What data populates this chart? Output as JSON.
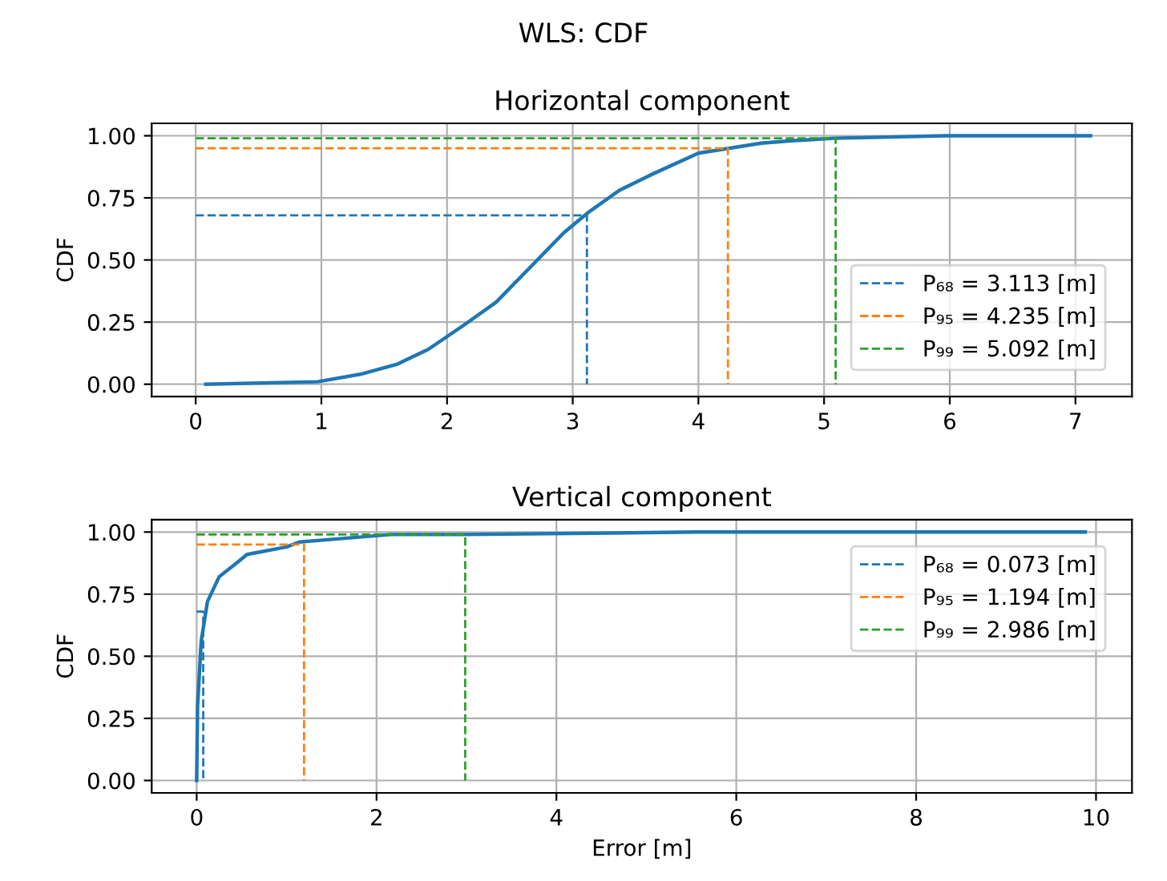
{
  "chart_data": [
    {
      "type": "line",
      "title": "Horizontal component",
      "ylabel": "CDF",
      "annotations": [
        "WLS: CDF"
      ],
      "xlim": [
        -0.35,
        7.45
      ],
      "xticks": [
        0,
        1,
        2,
        3,
        4,
        5,
        6,
        7
      ],
      "ylim": [
        -0.05,
        1.05
      ],
      "yticks": [
        {
          "value": 0,
          "label": "0.00"
        },
        {
          "value": 0.25,
          "label": "0.25"
        },
        {
          "value": 0.5,
          "label": "0.50"
        },
        {
          "value": 0.75,
          "label": "0.75"
        },
        {
          "value": 1,
          "label": "1.00"
        }
      ],
      "grid": true,
      "legend": "lower right",
      "series": [
        {
          "color": "#1f77b4",
          "line_style": "solid",
          "x": [
            0.08,
            0.97,
            1.31,
            1.6,
            1.85,
            2.14,
            2.39,
            2.68,
            2.93,
            3.12,
            3.37,
            3.61,
            4.0,
            4.25,
            4.5,
            4.74,
            5.08,
            5.97,
            7.12
          ],
          "values": [
            0.0,
            0.01,
            0.04,
            0.08,
            0.14,
            0.24,
            0.33,
            0.48,
            0.61,
            0.69,
            0.78,
            0.84,
            0.93,
            0.95,
            0.97,
            0.98,
            0.99,
            1.0,
            1.0
          ]
        },
        {
          "name": "P₆₈ = 3.113 [m]",
          "color": "#1f77b4",
          "line_style": "dashed",
          "x": [
            0,
            3.113,
            3.113
          ],
          "values": [
            0.68,
            0.68,
            0
          ]
        },
        {
          "name": "P₉₅ = 4.235 [m]",
          "color": "#ff7f0e",
          "line_style": "dashed",
          "x": [
            0,
            4.235,
            4.235
          ],
          "values": [
            0.95,
            0.95,
            0
          ]
        },
        {
          "name": "P₉₉ = 5.092 [m]",
          "color": "#2ca02c",
          "line_style": "dashed",
          "x": [
            0,
            5.092,
            5.092
          ],
          "values": [
            0.99,
            0.99,
            0
          ]
        }
      ]
    },
    {
      "type": "line",
      "title": "Vertical component",
      "ylabel": "CDF",
      "xlabel": "Error [m]",
      "xlim": [
        -0.5,
        10.4
      ],
      "xticks": [
        0,
        2,
        4,
        6,
        8,
        10
      ],
      "ylim": [
        -0.05,
        1.05
      ],
      "yticks": [
        {
          "value": 0,
          "label": "0.00"
        },
        {
          "value": 0.25,
          "label": "0.25"
        },
        {
          "value": 0.5,
          "label": "0.50"
        },
        {
          "value": 0.75,
          "label": "0.75"
        },
        {
          "value": 1,
          "label": "1.00"
        }
      ],
      "grid": true,
      "legend": "upper right",
      "series": [
        {
          "color": "#1f77b4",
          "line_style": "solid",
          "x": [
            0.0,
            0.01,
            0.05,
            0.12,
            0.25,
            0.46,
            0.56,
            1.0,
            1.14,
            1.48,
            2.16,
            2.97,
            5.56,
            9.88
          ],
          "values": [
            0.0,
            0.3,
            0.56,
            0.72,
            0.82,
            0.88,
            0.91,
            0.94,
            0.96,
            0.97,
            0.99,
            0.99,
            1.0,
            1.0
          ]
        },
        {
          "name": "P₆₈ = 0.073 [m]",
          "color": "#1f77b4",
          "line_style": "dashed",
          "x": [
            0,
            0.073,
            0.073
          ],
          "values": [
            0.68,
            0.68,
            0
          ]
        },
        {
          "name": "P₉₅ = 1.194 [m]",
          "color": "#ff7f0e",
          "line_style": "dashed",
          "x": [
            0,
            1.194,
            1.194
          ],
          "values": [
            0.95,
            0.95,
            0
          ]
        },
        {
          "name": "P₉₉ = 2.986 [m]",
          "color": "#2ca02c",
          "line_style": "dashed",
          "x": [
            0,
            2.986,
            2.986
          ],
          "values": [
            0.99,
            0.99,
            0
          ]
        }
      ]
    }
  ]
}
